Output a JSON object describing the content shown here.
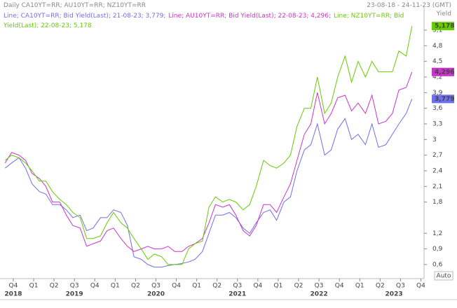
{
  "header": {
    "left": "Daily  CA10YT=RR; AU10YT=RR; NZ10YT=RR",
    "right": "23-08-18 - 24-11-23 (GMT)",
    "unit": "Yield",
    "mode": "Auto"
  },
  "chart_data": {
    "type": "line",
    "x": [
      2018.65,
      2018.73,
      2018.82,
      2018.9,
      2018.98,
      2019.07,
      2019.15,
      2019.23,
      2019.32,
      2019.4,
      2019.48,
      2019.57,
      2019.65,
      2019.73,
      2019.82,
      2019.9,
      2019.98,
      2020.07,
      2020.15,
      2020.23,
      2020.32,
      2020.4,
      2020.48,
      2020.57,
      2020.65,
      2020.73,
      2020.82,
      2020.9,
      2020.98,
      2021.07,
      2021.15,
      2021.23,
      2021.32,
      2021.4,
      2021.48,
      2021.57,
      2021.65,
      2021.73,
      2021.82,
      2021.9,
      2021.98,
      2022.07,
      2022.15,
      2022.23,
      2022.32,
      2022.4,
      2022.48,
      2022.57,
      2022.65,
      2022.73,
      2022.82,
      2022.9,
      2022.98,
      2023.07,
      2023.15,
      2023.23,
      2023.32,
      2023.4,
      2023.48,
      2023.57,
      2023.64
    ],
    "series": [
      {
        "name": "Line; CA10YT=RR; Bid Yield(Last); 21-08-23; 3,779;",
        "color": "#6f6ff0",
        "last_label": "3,779",
        "label_color": "#ffffff",
        "values": [
          2.45,
          2.55,
          2.65,
          2.45,
          2.15,
          2.0,
          1.95,
          1.75,
          1.75,
          1.65,
          1.5,
          1.55,
          1.25,
          1.3,
          1.5,
          1.5,
          1.65,
          1.6,
          1.35,
          0.75,
          0.7,
          0.6,
          0.55,
          0.55,
          0.58,
          0.6,
          0.62,
          0.65,
          0.7,
          0.85,
          1.2,
          1.55,
          1.55,
          1.6,
          1.5,
          1.3,
          1.2,
          1.4,
          1.6,
          1.65,
          1.45,
          1.8,
          1.9,
          2.4,
          2.8,
          2.9,
          3.3,
          2.7,
          2.8,
          3.2,
          3.4,
          3.0,
          3.1,
          2.9,
          3.3,
          2.85,
          2.9,
          3.1,
          3.3,
          3.5,
          3.779
        ]
      },
      {
        "name": "Line; AU10YT=RR; Bid Yield(Last); 22-08-23; 4,296;",
        "color": "#cc33cc",
        "last_label": "4,296",
        "label_color": "#ffffff",
        "values": [
          2.55,
          2.75,
          2.7,
          2.6,
          2.35,
          2.25,
          2.1,
          1.8,
          1.8,
          1.55,
          1.35,
          1.3,
          0.95,
          1.0,
          1.05,
          1.25,
          1.3,
          1.1,
          0.95,
          0.85,
          0.9,
          0.95,
          0.9,
          0.9,
          0.95,
          0.85,
          0.85,
          0.95,
          1.0,
          1.1,
          1.4,
          1.75,
          1.7,
          1.75,
          1.55,
          1.25,
          1.15,
          1.35,
          1.75,
          1.75,
          1.6,
          1.9,
          2.15,
          2.6,
          3.1,
          3.3,
          3.9,
          3.3,
          3.5,
          3.8,
          3.85,
          3.55,
          3.7,
          3.5,
          3.85,
          3.3,
          3.35,
          3.5,
          3.95,
          4.0,
          4.296
        ]
      },
      {
        "name": "Line; NZ10YT=RR; Bid Yield(Last); 22-08-23; 5,178",
        "color": "#66cc00",
        "last_label": "5,178",
        "label_color": "#000000",
        "values": [
          2.6,
          2.7,
          2.65,
          2.55,
          2.4,
          2.2,
          2.2,
          2.0,
          1.85,
          1.75,
          1.6,
          1.5,
          1.1,
          1.1,
          1.15,
          1.4,
          1.6,
          1.4,
          1.3,
          1.1,
          0.9,
          0.7,
          0.8,
          0.75,
          0.6,
          0.6,
          0.6,
          0.9,
          1.0,
          1.05,
          1.7,
          1.9,
          1.8,
          1.85,
          1.8,
          1.65,
          1.75,
          2.1,
          2.6,
          2.5,
          2.45,
          2.55,
          2.7,
          3.25,
          3.6,
          3.6,
          4.2,
          3.5,
          3.7,
          4.2,
          4.6,
          4.1,
          4.5,
          4.2,
          4.5,
          4.3,
          4.3,
          4.3,
          4.7,
          4.6,
          5.178
        ]
      }
    ],
    "xlim": [
      2018.63,
      2023.66
    ],
    "ylim": [
      0.33,
      5.49
    ],
    "yticks": [
      {
        "value": 0.6,
        "label": "0,6"
      },
      {
        "value": 0.9,
        "label": "0,9"
      },
      {
        "value": 1.2,
        "label": "1,2"
      },
      {
        "value": 1.8,
        "label": "1,8"
      },
      {
        "value": 2.1,
        "label": "2,1"
      },
      {
        "value": 2.4,
        "label": "2,4"
      },
      {
        "value": 2.7,
        "label": "2,7"
      },
      3,
      {
        "value": 3.3,
        "label": "3,3"
      },
      {
        "value": 3.6,
        "label": "3,6"
      },
      {
        "value": 3.9,
        "label": "3,9"
      },
      {
        "value": 4.2,
        "label": "4,2"
      },
      {
        "value": 4.5,
        "label": "4,5"
      },
      {
        "value": 4.8,
        "label": "4,8"
      },
      {
        "value": 5.1,
        "label": "5,1"
      }
    ],
    "xticks": [
      {
        "value": 2018.75,
        "label": "Q4"
      },
      {
        "value": 2019.0,
        "label": "Q1"
      },
      {
        "value": 2019.25,
        "label": "Q2"
      },
      {
        "value": 2019.5,
        "label": "Q3"
      },
      {
        "value": 2019.75,
        "label": "Q4"
      },
      {
        "value": 2020.0,
        "label": "Q1"
      },
      {
        "value": 2020.25,
        "label": "Q2"
      },
      {
        "value": 2020.5,
        "label": "Q3"
      },
      {
        "value": 2020.75,
        "label": "Q4"
      },
      {
        "value": 2021.0,
        "label": "Q1"
      },
      {
        "value": 2021.25,
        "label": "Q2"
      },
      {
        "value": 2021.5,
        "label": "Q3"
      },
      {
        "value": 2021.75,
        "label": "Q4"
      },
      {
        "value": 2022.0,
        "label": "Q1"
      },
      {
        "value": 2022.25,
        "label": "Q2"
      },
      {
        "value": 2022.5,
        "label": "Q3"
      },
      {
        "value": 2022.75,
        "label": "Q4"
      },
      {
        "value": 2023.0,
        "label": "Q1"
      },
      {
        "value": 2023.25,
        "label": "Q2"
      },
      {
        "value": 2023.5,
        "label": "Q3"
      },
      {
        "value": 2023.75,
        "label": "Q4"
      }
    ],
    "year_labels": [
      {
        "value": 2018.75,
        "label": "2018"
      },
      {
        "value": 2019.5,
        "label": "2019"
      },
      {
        "value": 2020.5,
        "label": "2020"
      },
      {
        "value": 2021.5,
        "label": "2021"
      },
      {
        "value": 2022.5,
        "label": "2022"
      },
      {
        "value": 2023.42,
        "label": "2023"
      }
    ]
  }
}
